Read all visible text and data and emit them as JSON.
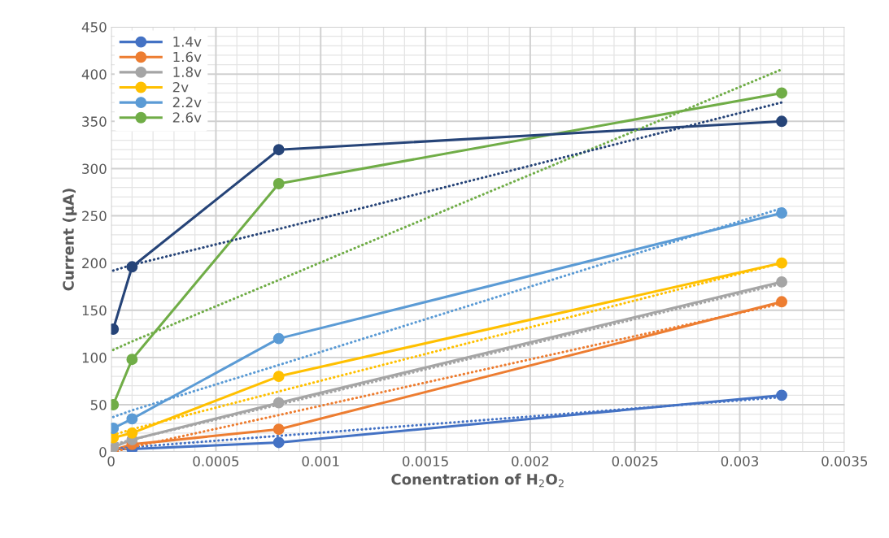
{
  "chart_data": {
    "type": "line",
    "xlabel": "Conentration of H$_{2}$O$_{2}$",
    "ylabel": "Current (µA)",
    "x": [
      1e-05,
      0.0001,
      0.0008,
      0.0032
    ],
    "xlim": [
      0,
      0.0035
    ],
    "xticks": [
      0,
      0.0005,
      0.001,
      0.0015,
      0.002,
      0.0025,
      0.003,
      0.0035
    ],
    "ylim": [
      0,
      450
    ],
    "yticks": [
      0,
      50,
      100,
      150,
      200,
      250,
      300,
      350,
      400,
      450
    ],
    "grid": true,
    "legend": "top left",
    "marker": "circle",
    "line_style": "solid",
    "series": [
      {
        "name": "1.4v",
        "color": "#4472c4",
        "values": [
          3,
          3,
          10,
          60
        ]
      },
      {
        "name": "1.6v",
        "color": "#ed7d31",
        "values": [
          2,
          8,
          24,
          159
        ]
      },
      {
        "name": "1.8v",
        "color": "#a5a5a5",
        "values": [
          5,
          13,
          52,
          180
        ]
      },
      {
        "name": "2v",
        "color": "#ffc000",
        "values": [
          15,
          20,
          80,
          200
        ]
      },
      {
        "name": "2.2v",
        "color": "#5b9bd5",
        "values": [
          25,
          35,
          120,
          253
        ]
      },
      {
        "name": "2.6v",
        "color": "#70ad47",
        "values": [
          50,
          98,
          284,
          380
        ]
      },
      {
        "color": "#264478",
        "values": [
          130,
          196,
          320,
          350
        ]
      },
      {
        "type": "line",
        "marker": "none",
        "line_style": "dotted",
        "color": "#4472c4",
        "values": [
          3,
          5,
          17,
          58
        ]
      },
      {
        "type": "line",
        "marker": "none",
        "line_style": "dotted",
        "color": "#ed7d31",
        "values": [
          0,
          5,
          39,
          157
        ]
      },
      {
        "type": "line",
        "marker": "none",
        "line_style": "dotted",
        "color": "#a5a5a5",
        "values": [
          8,
          13,
          50,
          178
        ]
      },
      {
        "type": "line",
        "marker": "none",
        "line_style": "dotted",
        "color": "#ffc000",
        "values": [
          18,
          24,
          64,
          200
        ]
      },
      {
        "type": "line",
        "marker": "none",
        "line_style": "dotted",
        "color": "#5b9bd5",
        "values": [
          37,
          44,
          92,
          258
        ]
      },
      {
        "type": "line",
        "marker": "none",
        "line_style": "dotted",
        "color": "#70ad47",
        "values": [
          108,
          117,
          182,
          405
        ]
      },
      {
        "type": "line",
        "marker": "none",
        "line_style": "dotted",
        "color": "#264478",
        "values": [
          192,
          198,
          236,
          370
        ]
      }
    ]
  }
}
